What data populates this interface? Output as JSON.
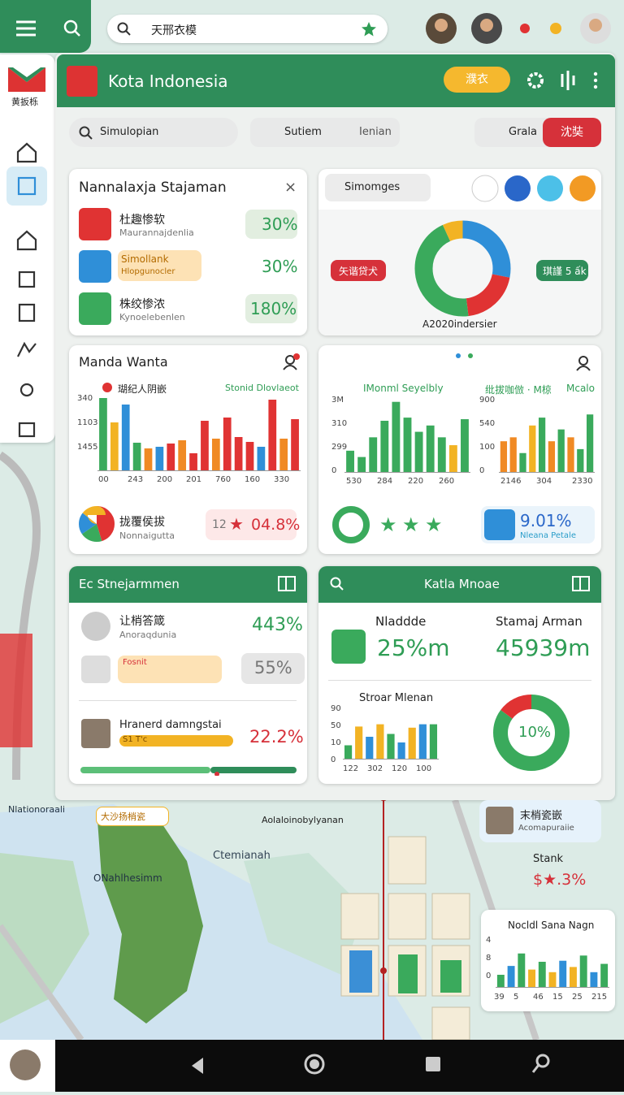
{
  "topbar": {
    "search": "天邢衣模"
  },
  "sidebar": {
    "logo_text": "黄扳栎"
  },
  "header": {
    "title": "Kota Indonesia",
    "button": "濮衣"
  },
  "toolbar": {
    "search": "Simulopian",
    "tab1": "Sutiem",
    "tab2": "Ienian",
    "tab3": "Grala",
    "action": "沈奘"
  },
  "card1": {
    "title": "Nannalaxja Stajaman",
    "rows": [
      {
        "title": "杜趣惨软",
        "subtitle": "Maurannajdenlia",
        "value": "30%"
      },
      {
        "title": "Simollank",
        "subtitle": "Hlopgunocler",
        "value": "30%"
      },
      {
        "title": "株绞惨浓",
        "subtitle": "Kynoelebenlen",
        "value": "180%"
      }
    ]
  },
  "card2": {
    "search": "Simomges",
    "label_left": "矢谐贷犬",
    "label_right": "琪謹 5 ấk",
    "caption": "A2020indersier",
    "donut": [
      {
        "value": 28,
        "color": "#2f8fd8"
      },
      {
        "value": 20,
        "color": "#e03333"
      },
      {
        "value": 45,
        "color": "#3aaa5c"
      },
      {
        "value": 7,
        "color": "#f2b324"
      }
    ]
  },
  "card3": {
    "title": "Manda Wanta",
    "legend_left": "瑚纪人阴嵌",
    "legend_right": "Stonid Dlovlaeot",
    "y_labels": [
      "340",
      "1103",
      "1455"
    ],
    "x_labels": [
      "00",
      "243",
      "200",
      "201",
      "760",
      "160",
      "330"
    ],
    "bars": [
      {
        "value": 90,
        "color": "#3aaa5c"
      },
      {
        "value": 60,
        "color": "#f2b324"
      },
      {
        "value": 82,
        "color": "#2f8fd8"
      },
      {
        "value": 35,
        "color": "#3aaa5c"
      },
      {
        "value": 28,
        "color": "#f08a24"
      },
      {
        "value": 30,
        "color": "#2f8fd8"
      },
      {
        "value": 34,
        "color": "#e03333"
      },
      {
        "value": 38,
        "color": "#f08a24"
      },
      {
        "value": 22,
        "color": "#e03333"
      },
      {
        "value": 62,
        "color": "#e03333"
      },
      {
        "value": 40,
        "color": "#f08a24"
      },
      {
        "value": 66,
        "color": "#e03333"
      },
      {
        "value": 42,
        "color": "#e03333"
      },
      {
        "value": 36,
        "color": "#e03333"
      },
      {
        "value": 30,
        "color": "#2f8fd8"
      },
      {
        "value": 88,
        "color": "#e03333"
      },
      {
        "value": 40,
        "color": "#f08a24"
      },
      {
        "value": 64,
        "color": "#e03333"
      }
    ],
    "pie": [
      {
        "value": 45,
        "color": "#e03333"
      },
      {
        "value": 20,
        "color": "#3aaa5c"
      },
      {
        "value": 20,
        "color": "#2f8fd8"
      },
      {
        "value": 15,
        "color": "#f2b324"
      }
    ],
    "summary_title": "拢覆侯拔",
    "summary_subtitle": "Nonnaigutta",
    "badge": "12",
    "change": "04.8%"
  },
  "card4": {
    "left_title": "IMonml Seyelbly",
    "left_y_labels": [
      "3M",
      "310",
      "299",
      "0"
    ],
    "left_x_labels": [
      "530",
      "284",
      "220",
      "260"
    ],
    "left_bars": [
      {
        "value": 28,
        "color": "#3aaa5c"
      },
      {
        "value": 20,
        "color": "#3aaa5c"
      },
      {
        "value": 45,
        "color": "#3aaa5c"
      },
      {
        "value": 66,
        "color": "#3aaa5c"
      },
      {
        "value": 90,
        "color": "#3aaa5c"
      },
      {
        "value": 70,
        "color": "#3aaa5c"
      },
      {
        "value": 52,
        "color": "#3aaa5c"
      },
      {
        "value": 60,
        "color": "#3aaa5c"
      },
      {
        "value": 45,
        "color": "#3aaa5c"
      },
      {
        "value": 35,
        "color": "#f2b324"
      },
      {
        "value": 68,
        "color": "#3aaa5c"
      }
    ],
    "right_title": "纰拔咖倣 · M椋",
    "right_title2": "Mcalo",
    "right_y_labels": [
      "900",
      "540",
      "100",
      "0"
    ],
    "right_x_labels": [
      "2146",
      "304",
      "2330"
    ],
    "right_bars": [
      {
        "value": 40,
        "color": "#f08a24"
      },
      {
        "value": 45,
        "color": "#f08a24"
      },
      {
        "value": 25,
        "color": "#3aaa5c"
      },
      {
        "value": 60,
        "color": "#f2b324"
      },
      {
        "value": 70,
        "color": "#3aaa5c"
      },
      {
        "value": 40,
        "color": "#f08a24"
      },
      {
        "value": 55,
        "color": "#3aaa5c"
      },
      {
        "value": 45,
        "color": "#f08a24"
      },
      {
        "value": 30,
        "color": "#3aaa5c"
      },
      {
        "value": 74,
        "color": "#3aaa5c"
      }
    ],
    "stat": "9.01%",
    "stat_label": "Nleana Petale"
  },
  "card5": {
    "title": "Ec Stnejarmmen",
    "row1_title": "让梢答箴",
    "row1_subtitle": "Anoraqdunia",
    "row1_value": "443%",
    "row2_tag": "Fosnit",
    "row2_value": "55%",
    "row3_title": "Hranerd damngstai",
    "row3_tag": "S1 T'c",
    "row3_value": "22.2%"
  },
  "card6": {
    "title": "Katla Mnoae",
    "stat1_label": "Nladdde",
    "stat1_value": "25%m",
    "stat2_label": "Stamaj Arman",
    "stat2_value": "45939m",
    "chart_title": "Stroar Mlenan",
    "y_labels": [
      "90",
      "50",
      "10",
      "0"
    ],
    "x_labels": [
      "122",
      "302",
      "120",
      "100"
    ],
    "bars": [
      {
        "value": 25,
        "color": "#3aaa5c"
      },
      {
        "value": 58,
        "color": "#f2b324"
      },
      {
        "value": 40,
        "color": "#2f8fd8"
      },
      {
        "value": 62,
        "color": "#f2b324"
      },
      {
        "value": 45,
        "color": "#3aaa5c"
      },
      {
        "value": 30,
        "color": "#2f8fd8"
      },
      {
        "value": 56,
        "color": "#f2b324"
      },
      {
        "value": 62,
        "color": "#2f8fd8"
      },
      {
        "value": 62,
        "color": "#3aaa5c"
      }
    ],
    "donut": [
      {
        "value": 85,
        "color": "#3aaa5c"
      },
      {
        "value": 15,
        "color": "#e03333"
      }
    ],
    "donut_label": "10%"
  },
  "map": {
    "label1": "Nlationoraali",
    "label2": "大沙扬梢瓷",
    "label3": "Aolaloinobylyanan",
    "label4": "Ctemianah",
    "label5": "ONahlhesimm",
    "info_title": "末梢瓷嵌",
    "info_subtitle": "Acomapuraiie",
    "stat_label": "Stank",
    "stat_value": "$★.3%",
    "chart_title": "Nocldl Sana Nagn",
    "chart_y_labels": [
      "4",
      "8",
      "0"
    ],
    "chart_x_labels": [
      "39",
      "5",
      "46",
      "15",
      "25",
      "215"
    ],
    "chart_bars": [
      {
        "value": 25,
        "color": "#3aaa5c"
      },
      {
        "value": 42,
        "color": "#2f8fd8"
      },
      {
        "value": 66,
        "color": "#3aaa5c"
      },
      {
        "value": 35,
        "color": "#f2b324"
      },
      {
        "value": 50,
        "color": "#3aaa5c"
      },
      {
        "value": 30,
        "color": "#f2b324"
      },
      {
        "value": 52,
        "color": "#2f8fd8"
      },
      {
        "value": 40,
        "color": "#f2b324"
      },
      {
        "value": 62,
        "color": "#3aaa5c"
      },
      {
        "value": 30,
        "color": "#2f8fd8"
      },
      {
        "value": 46,
        "color": "#3aaa5c"
      }
    ]
  }
}
